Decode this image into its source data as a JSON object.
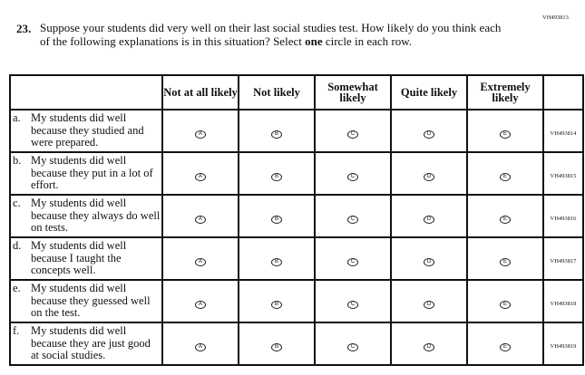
{
  "question_id": "VH493813",
  "question": {
    "number": "23.",
    "text_before": "Suppose your students did very well on their last social studies test. How likely do you think each of the following explanations is in this situation? Select ",
    "text_bold": "one",
    "text_after": " circle in each row."
  },
  "columns": [
    "Not at all likely",
    "Not likely",
    "Somewhat likely",
    "Quite likely",
    "Extremely likely"
  ],
  "bubble_letters": [
    "A",
    "B",
    "C",
    "D",
    "E"
  ],
  "rows": [
    {
      "letter": "a.",
      "text": "My students did well because they studied and were prepared.",
      "id": "VH493814"
    },
    {
      "letter": "b.",
      "text": "My students did well because they put in a lot of effort.",
      "id": "VH493815"
    },
    {
      "letter": "c.",
      "text": "My students did well because they always do well on tests.",
      "id": "VH493816"
    },
    {
      "letter": "d.",
      "text": "My students did well because I taught the concepts well.",
      "id": "VH493817"
    },
    {
      "letter": "e.",
      "text": "My students did well because they guessed well on the test.",
      "id": "VH493818"
    },
    {
      "letter": "f.",
      "text": "My students did well because they are just good at social studies.",
      "id": "VH493819"
    }
  ]
}
